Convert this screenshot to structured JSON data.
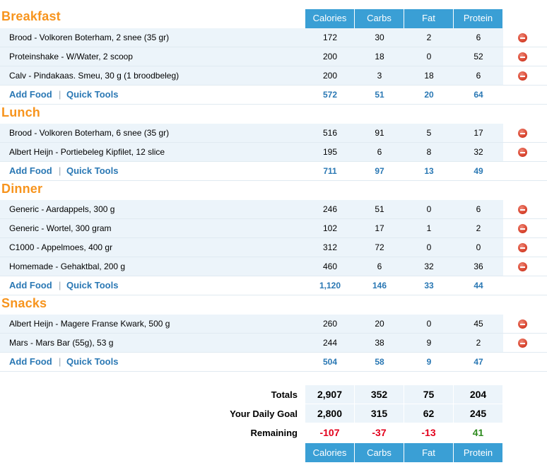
{
  "columns": [
    "Calories",
    "Carbs",
    "Fat",
    "Protein"
  ],
  "meals": [
    {
      "title": "Breakfast",
      "foods": [
        {
          "name": "Brood - Volkoren Boterham, 2 snee (35 gr)",
          "calories": "172",
          "carbs": "30",
          "fat": "2",
          "protein": "6"
        },
        {
          "name": "Proteinshake - W/Water, 2 scoop",
          "calories": "200",
          "carbs": "18",
          "fat": "0",
          "protein": "52"
        },
        {
          "name": "Calv - Pindakaas. Smeu, 30 g (1 broodbeleg)",
          "calories": "200",
          "carbs": "3",
          "fat": "18",
          "protein": "6"
        }
      ],
      "totals": {
        "calories": "572",
        "carbs": "51",
        "fat": "20",
        "protein": "64"
      }
    },
    {
      "title": "Lunch",
      "foods": [
        {
          "name": "Brood - Volkoren Boterham, 6 snee (35 gr)",
          "calories": "516",
          "carbs": "91",
          "fat": "5",
          "protein": "17"
        },
        {
          "name": "Albert Heijn - Portiebeleg Kipfilet, 12 slice",
          "calories": "195",
          "carbs": "6",
          "fat": "8",
          "protein": "32"
        }
      ],
      "totals": {
        "calories": "711",
        "carbs": "97",
        "fat": "13",
        "protein": "49"
      }
    },
    {
      "title": "Dinner",
      "foods": [
        {
          "name": "Generic - Aardappels, 300 g",
          "calories": "246",
          "carbs": "51",
          "fat": "0",
          "protein": "6"
        },
        {
          "name": "Generic - Wortel, 300 gram",
          "calories": "102",
          "carbs": "17",
          "fat": "1",
          "protein": "2"
        },
        {
          "name": "C1000 - Appelmoes, 400 gr",
          "calories": "312",
          "carbs": "72",
          "fat": "0",
          "protein": "0"
        },
        {
          "name": "Homemade - Gehaktbal, 200 g",
          "calories": "460",
          "carbs": "6",
          "fat": "32",
          "protein": "36"
        }
      ],
      "totals": {
        "calories": "1,120",
        "carbs": "146",
        "fat": "33",
        "protein": "44"
      }
    },
    {
      "title": "Snacks",
      "foods": [
        {
          "name": "Albert Heijn - Magere Franse Kwark, 500 g",
          "calories": "260",
          "carbs": "20",
          "fat": "0",
          "protein": "45"
        },
        {
          "name": "Mars - Mars Bar (55g), 53 g",
          "calories": "244",
          "carbs": "38",
          "fat": "9",
          "protein": "2"
        }
      ],
      "totals": {
        "calories": "504",
        "carbs": "58",
        "fat": "9",
        "protein": "47"
      }
    }
  ],
  "links": {
    "add_food": "Add Food",
    "quick_tools": "Quick Tools",
    "separator": "|"
  },
  "summary": {
    "totals": {
      "label": "Totals",
      "values": [
        "2,907",
        "352",
        "75",
        "204"
      ]
    },
    "goal": {
      "label": "Your Daily Goal",
      "values": [
        "2,800",
        "315",
        "62",
        "245"
      ]
    },
    "remaining": {
      "label": "Remaining",
      "values": [
        "-107",
        "-37",
        "-13",
        "41"
      ],
      "status": [
        "negative",
        "negative",
        "negative",
        "positive"
      ]
    }
  },
  "colors": {
    "meal_title": "#f7941d",
    "header_bg": "#3a9fd5",
    "link": "#2a78b4",
    "row_bg": "#ecf4fa",
    "negative": "#e3001b",
    "positive": "#2e8b1f"
  },
  "icons": {
    "delete": "remove-circle-icon"
  }
}
